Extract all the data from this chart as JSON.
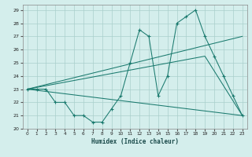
{
  "xlabel": "Humidex (Indice chaleur)",
  "bg_color": "#d4eeec",
  "grid_color": "#aacfcc",
  "line_color": "#1a7a6e",
  "xlim": [
    -0.5,
    23.5
  ],
  "ylim": [
    20,
    29.4
  ],
  "xticks": [
    0,
    1,
    2,
    3,
    4,
    5,
    6,
    7,
    8,
    9,
    10,
    11,
    12,
    13,
    14,
    15,
    16,
    17,
    18,
    19,
    20,
    21,
    22,
    23
  ],
  "yticks": [
    20,
    21,
    22,
    23,
    24,
    25,
    26,
    27,
    28,
    29
  ],
  "line1": {
    "x": [
      0,
      1,
      2,
      3,
      4,
      5,
      6,
      7,
      8,
      9,
      10,
      11,
      12,
      13,
      14,
      15,
      16,
      17,
      18,
      19,
      20,
      21,
      22,
      23
    ],
    "y": [
      23,
      23,
      23,
      22,
      22,
      21,
      21,
      20.5,
      20.5,
      21.5,
      22.5,
      25,
      27.5,
      27,
      22.5,
      24,
      28,
      28.5,
      29,
      27,
      25.5,
      24,
      22.5,
      21
    ]
  },
  "line2": {
    "x": [
      0,
      23
    ],
    "y": [
      23,
      27
    ]
  },
  "line3": {
    "x": [
      0,
      23
    ],
    "y": [
      23,
      21
    ]
  },
  "line4": {
    "x": [
      0,
      19,
      23
    ],
    "y": [
      23,
      25.5,
      21
    ]
  }
}
